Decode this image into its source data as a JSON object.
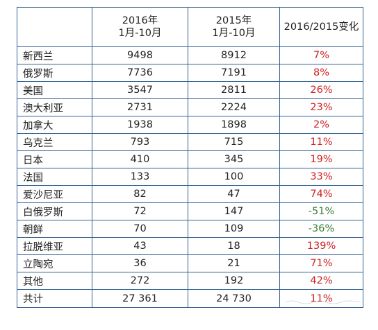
{
  "colors": {
    "border": "#2f5f8f",
    "increase": "#d02020",
    "decrease": "#3a7d33",
    "text": "#222222"
  },
  "header": {
    "col_2016_line1": "2016年",
    "col_2016_line2": "1月-10月",
    "col_2015_line1": "2015年",
    "col_2015_line2": "1月-10月",
    "col_change": "2016/2015变化"
  },
  "rows": [
    {
      "country": "新西兰",
      "v2016": "9498",
      "v2015": "8912",
      "change": "7%",
      "trend": "up"
    },
    {
      "country": "俄罗斯",
      "v2016": "7736",
      "v2015": "7191",
      "change": "8%",
      "trend": "up"
    },
    {
      "country": "美国",
      "v2016": "3547",
      "v2015": "2811",
      "change": "26%",
      "trend": "up"
    },
    {
      "country": "澳大利亚",
      "v2016": "2731",
      "v2015": "2224",
      "change": "23%",
      "trend": "up"
    },
    {
      "country": "加拿大",
      "v2016": "1938",
      "v2015": "1898",
      "change": "2%",
      "trend": "up"
    },
    {
      "country": "乌克兰",
      "v2016": "793",
      "v2015": "715",
      "change": "11%",
      "trend": "up"
    },
    {
      "country": "日本",
      "v2016": "410",
      "v2015": "345",
      "change": "19%",
      "trend": "up"
    },
    {
      "country": "法国",
      "v2016": "133",
      "v2015": "100",
      "change": "33%",
      "trend": "up"
    },
    {
      "country": "爱沙尼亚",
      "v2016": "82",
      "v2015": "47",
      "change": "74%",
      "trend": "up"
    },
    {
      "country": "白俄罗斯",
      "v2016": "72",
      "v2015": "147",
      "change": "-51%",
      "trend": "down"
    },
    {
      "country": "朝鲜",
      "v2016": "70",
      "v2015": "109",
      "change": "-36%",
      "trend": "down"
    },
    {
      "country": "拉脱维亚",
      "v2016": "43",
      "v2015": "18",
      "change": "139%",
      "trend": "up"
    },
    {
      "country": "立陶宛",
      "v2016": "36",
      "v2015": "21",
      "change": "71%",
      "trend": "up"
    },
    {
      "country": "其他",
      "v2016": "272",
      "v2015": "192",
      "change": "42%",
      "trend": "up"
    }
  ],
  "total": {
    "label": "共计",
    "v2016": "27 361",
    "v2015": "24 730",
    "change": "11%"
  }
}
